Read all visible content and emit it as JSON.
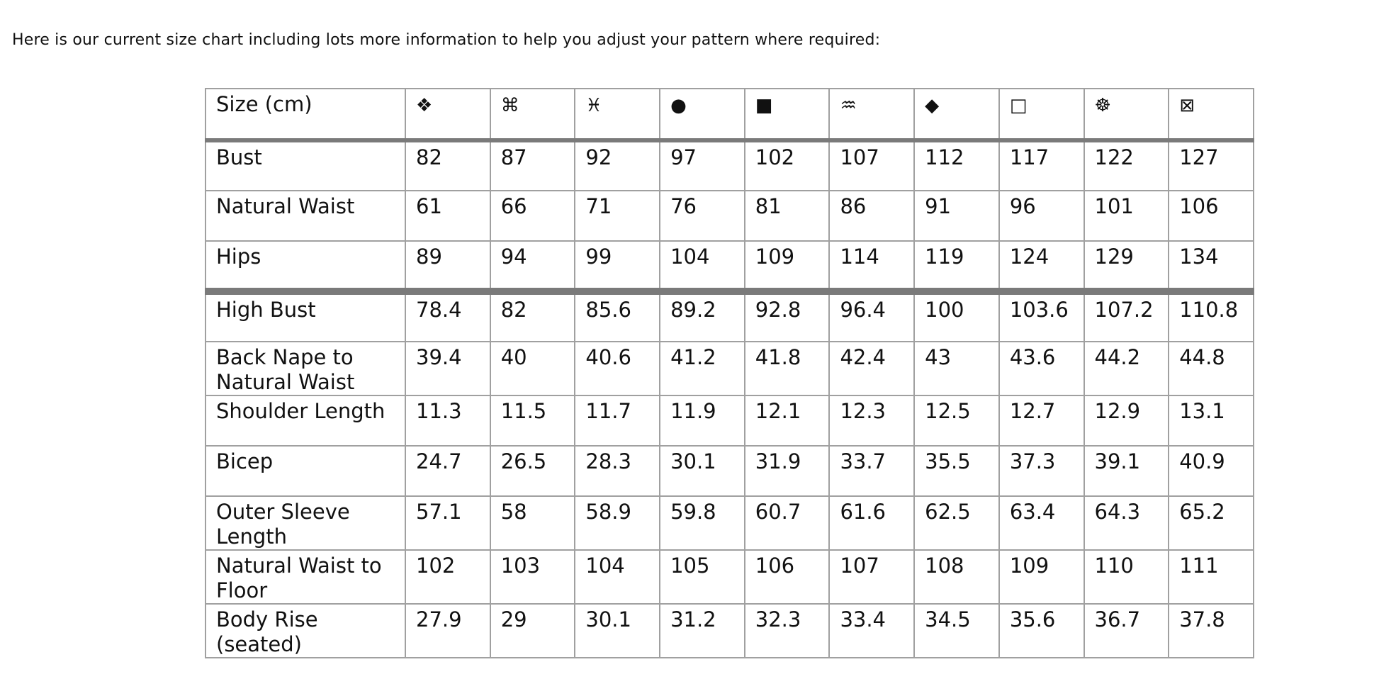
{
  "intro": "Here is our current size chart including lots more information to help you adjust your pattern where required:",
  "table": {
    "header_label": "Size (cm)",
    "size_symbols": [
      {
        "glyph": "❖",
        "icon": "four-diamonds-icon"
      },
      {
        "glyph": "⌘",
        "icon": "command-icon"
      },
      {
        "glyph": "♓",
        "icon": "pisces-icon"
      },
      {
        "glyph": "●",
        "icon": "circle-icon"
      },
      {
        "glyph": "■",
        "icon": "square-icon"
      },
      {
        "glyph": "♒",
        "icon": "aquarius-icon"
      },
      {
        "glyph": "◆",
        "icon": "diamond-icon"
      },
      {
        "glyph": "□",
        "icon": "hollow-square-icon"
      },
      {
        "glyph": "☸",
        "icon": "wheel-icon"
      },
      {
        "glyph": "⊠",
        "icon": "boxed-x-icon"
      }
    ],
    "rows": [
      {
        "label": "Bust",
        "values": [
          "82",
          "87",
          "92",
          "97",
          "102",
          "107",
          "112",
          "117",
          "122",
          "127"
        ]
      },
      {
        "label": "Natural Waist",
        "values": [
          "61",
          "66",
          "71",
          "76",
          "81",
          "86",
          "91",
          "96",
          "101",
          "106"
        ]
      },
      {
        "label": "Hips",
        "values": [
          "89",
          "94",
          "99",
          "104",
          "109",
          "114",
          "119",
          "124",
          "129",
          "134"
        ]
      },
      {
        "label": "High Bust",
        "values": [
          "78.4",
          "82",
          "85.6",
          "89.2",
          "92.8",
          "96.4",
          "100",
          "103.6",
          "107.2",
          "110.8"
        ]
      },
      {
        "label": "Back Nape to\nNatural Waist",
        "values": [
          "39.4",
          "40",
          "40.6",
          "41.2",
          "41.8",
          "42.4",
          "43",
          "43.6",
          "44.2",
          "44.8"
        ]
      },
      {
        "label": "Shoulder Length",
        "values": [
          "11.3",
          "11.5",
          "11.7",
          "11.9",
          "12.1",
          "12.3",
          "12.5",
          "12.7",
          "12.9",
          "13.1"
        ]
      },
      {
        "label": "Bicep",
        "values": [
          "24.7",
          "26.5",
          "28.3",
          "30.1",
          "31.9",
          "33.7",
          "35.5",
          "37.3",
          "39.1",
          "40.9"
        ]
      },
      {
        "label": "Outer Sleeve\nLength",
        "values": [
          "57.1",
          "58",
          "58.9",
          "59.8",
          "60.7",
          "61.6",
          "62.5",
          "63.4",
          "64.3",
          "65.2"
        ]
      },
      {
        "label": "Natural Waist to\nFloor",
        "values": [
          "102",
          "103",
          "104",
          "105",
          "106",
          "107",
          "108",
          "109",
          "110",
          "111"
        ]
      },
      {
        "label": "Body Rise\n(seated)",
        "values": [
          "27.9",
          "29",
          "30.1",
          "31.2",
          "32.3",
          "33.4",
          "34.5",
          "35.6",
          "36.7",
          "37.8"
        ]
      }
    ]
  }
}
